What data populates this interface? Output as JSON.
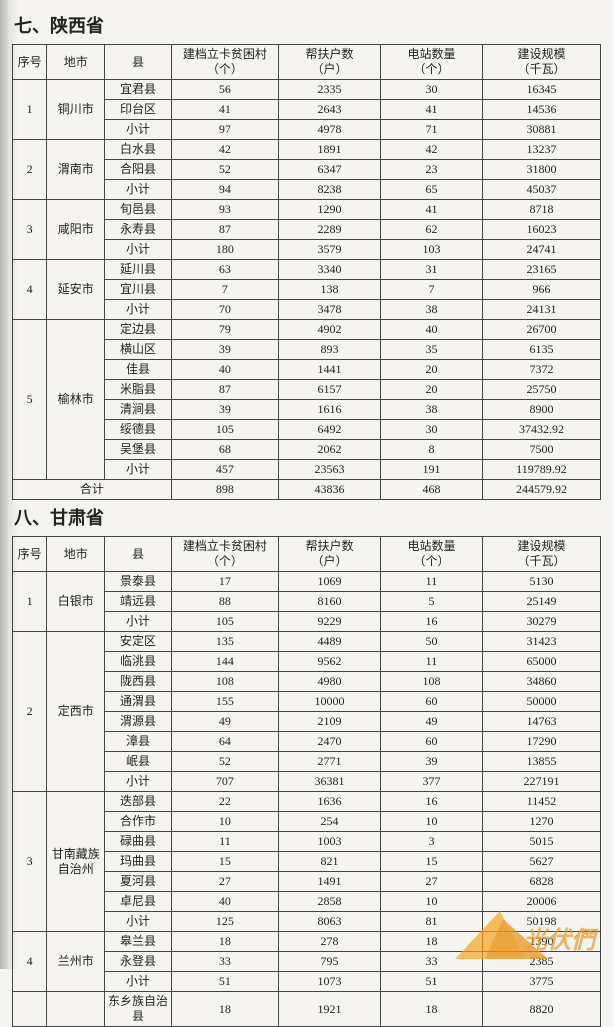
{
  "sections": [
    {
      "title": "七、陕西省",
      "headers": [
        "序号",
        "地市",
        "县",
        "建档立卡贫困村\n（个）",
        "帮扶户数\n（户）",
        "电站数量\n（个）",
        "建设规模\n（千瓦）"
      ],
      "groups": [
        {
          "seq": "1",
          "city": "铜川市",
          "rows": [
            {
              "county": "宜君县",
              "v": [
                "56",
                "2335",
                "30",
                "16345"
              ]
            },
            {
              "county": "印台区",
              "v": [
                "41",
                "2643",
                "41",
                "14536"
              ]
            },
            {
              "county": "小计",
              "v": [
                "97",
                "4978",
                "71",
                "30881"
              ]
            }
          ]
        },
        {
          "seq": "2",
          "city": "渭南市",
          "rows": [
            {
              "county": "白水县",
              "v": [
                "42",
                "1891",
                "42",
                "13237"
              ]
            },
            {
              "county": "合阳县",
              "v": [
                "52",
                "6347",
                "23",
                "31800"
              ]
            },
            {
              "county": "小计",
              "v": [
                "94",
                "8238",
                "65",
                "45037"
              ]
            }
          ]
        },
        {
          "seq": "3",
          "city": "咸阳市",
          "rows": [
            {
              "county": "旬邑县",
              "v": [
                "93",
                "1290",
                "41",
                "8718"
              ]
            },
            {
              "county": "永寿县",
              "v": [
                "87",
                "2289",
                "62",
                "16023"
              ]
            },
            {
              "county": "小计",
              "v": [
                "180",
                "3579",
                "103",
                "24741"
              ]
            }
          ]
        },
        {
          "seq": "4",
          "city": "延安市",
          "rows": [
            {
              "county": "延川县",
              "v": [
                "63",
                "3340",
                "31",
                "23165"
              ]
            },
            {
              "county": "宜川县",
              "v": [
                "7",
                "138",
                "7",
                "966"
              ]
            },
            {
              "county": "小计",
              "v": [
                "70",
                "3478",
                "38",
                "24131"
              ]
            }
          ]
        },
        {
          "seq": "5",
          "city": "榆林市",
          "rows": [
            {
              "county": "定边县",
              "v": [
                "79",
                "4902",
                "40",
                "26700"
              ]
            },
            {
              "county": "横山区",
              "v": [
                "39",
                "893",
                "35",
                "6135"
              ]
            },
            {
              "county": "佳县",
              "v": [
                "40",
                "1441",
                "20",
                "7372"
              ]
            },
            {
              "county": "米脂县",
              "v": [
                "87",
                "6157",
                "20",
                "25750"
              ]
            },
            {
              "county": "清涧县",
              "v": [
                "39",
                "1616",
                "38",
                "8900"
              ]
            },
            {
              "county": "绥德县",
              "v": [
                "105",
                "6492",
                "30",
                "37432.92"
              ]
            },
            {
              "county": "吴堡县",
              "v": [
                "68",
                "2062",
                "8",
                "7500"
              ]
            },
            {
              "county": "小计",
              "v": [
                "457",
                "23563",
                "191",
                "119789.92"
              ]
            }
          ]
        }
      ],
      "total": {
        "label": "合计",
        "v": [
          "898",
          "43836",
          "468",
          "244579.92"
        ]
      }
    },
    {
      "title": "八、甘肃省",
      "headers": [
        "序号",
        "地市",
        "县",
        "建档立卡贫困村\n（个）",
        "帮扶户数\n（户）",
        "电站数量\n（个）",
        "建设规模\n（千瓦）"
      ],
      "groups": [
        {
          "seq": "1",
          "city": "白银市",
          "rows": [
            {
              "county": "景泰县",
              "v": [
                "17",
                "1069",
                "11",
                "5130"
              ]
            },
            {
              "county": "靖远县",
              "v": [
                "88",
                "8160",
                "5",
                "25149"
              ]
            },
            {
              "county": "小计",
              "v": [
                "105",
                "9229",
                "16",
                "30279"
              ]
            }
          ]
        },
        {
          "seq": "2",
          "city": "定西市",
          "rows": [
            {
              "county": "安定区",
              "v": [
                "135",
                "4489",
                "50",
                "31423"
              ]
            },
            {
              "county": "临洮县",
              "v": [
                "144",
                "9562",
                "11",
                "65000"
              ]
            },
            {
              "county": "陇西县",
              "v": [
                "108",
                "4980",
                "108",
                "34860"
              ]
            },
            {
              "county": "通渭县",
              "v": [
                "155",
                "10000",
                "60",
                "50000"
              ]
            },
            {
              "county": "渭源县",
              "v": [
                "49",
                "2109",
                "49",
                "14763"
              ]
            },
            {
              "county": "漳县",
              "v": [
                "64",
                "2470",
                "60",
                "17290"
              ]
            },
            {
              "county": "岷县",
              "v": [
                "52",
                "2771",
                "39",
                "13855"
              ]
            },
            {
              "county": "小计",
              "v": [
                "707",
                "36381",
                "377",
                "227191"
              ]
            }
          ]
        },
        {
          "seq": "3",
          "city": "甘南藏族自治州",
          "rows": [
            {
              "county": "迭部县",
              "v": [
                "22",
                "1636",
                "16",
                "11452"
              ]
            },
            {
              "county": "合作市",
              "v": [
                "10",
                "254",
                "10",
                "1270"
              ]
            },
            {
              "county": "碌曲县",
              "v": [
                "11",
                "1003",
                "3",
                "5015"
              ]
            },
            {
              "county": "玛曲县",
              "v": [
                "15",
                "821",
                "15",
                "5627"
              ]
            },
            {
              "county": "夏河县",
              "v": [
                "27",
                "1491",
                "27",
                "6828"
              ]
            },
            {
              "county": "卓尼县",
              "v": [
                "40",
                "2858",
                "10",
                "20006"
              ]
            },
            {
              "county": "小计",
              "v": [
                "125",
                "8063",
                "81",
                "50198"
              ]
            }
          ]
        },
        {
          "seq": "4",
          "city": "兰州市",
          "rows": [
            {
              "county": "皋兰县",
              "v": [
                "18",
                "278",
                "18",
                "1390"
              ]
            },
            {
              "county": "永登县",
              "v": [
                "33",
                "795",
                "33",
                "2385"
              ]
            },
            {
              "county": "小计",
              "v": [
                "51",
                "1073",
                "51",
                "3775"
              ]
            }
          ]
        },
        {
          "seq": "",
          "city": "",
          "rows": [
            {
              "county": "东乡族自治县",
              "v": [
                "18",
                "1921",
                "18",
                "8820"
              ]
            }
          ]
        }
      ]
    }
  ],
  "watermark_text": "光伏們"
}
